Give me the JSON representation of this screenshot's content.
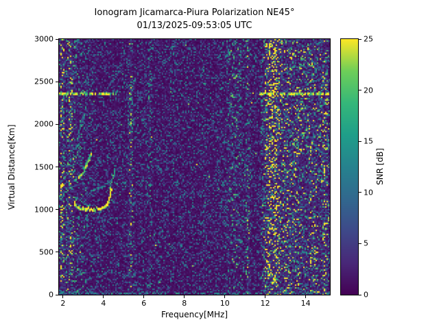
{
  "chart_data": {
    "type": "heatmap",
    "title": "Ionogram Jicamarca-Piura Polarization NE45°",
    "subtitle": "01/13/2025-09:53:05 UTC",
    "xlabel": "Frequency[MHz]",
    "ylabel": "Virtual Distance[Km]",
    "colorbar_label": "SNR [dB]",
    "xlim": [
      1.8,
      15.2
    ],
    "ylim": [
      0,
      3000
    ],
    "clim": [
      0,
      25
    ],
    "x_ticks": [
      2,
      4,
      6,
      8,
      10,
      12,
      14
    ],
    "y_ticks": [
      0,
      500,
      1000,
      1500,
      2000,
      2500,
      3000
    ],
    "colorbar_ticks": [
      0,
      5,
      10,
      15,
      20,
      25
    ],
    "colormap": "viridis",
    "colormap_anchors": [
      "#440154",
      "#482878",
      "#3e4989",
      "#31688e",
      "#26828e",
      "#1f9e89",
      "#35b779",
      "#6ece58",
      "#fde725"
    ],
    "background_color": "#440154",
    "noise_seed": 20250113,
    "vertical_noise_bands": [
      {
        "freq_mhz": 1.95,
        "halfwidth_mhz": 0.05,
        "gain": 3.2
      },
      {
        "freq_mhz": 2.35,
        "halfwidth_mhz": 0.12,
        "gain": 2.6
      },
      {
        "freq_mhz": 2.8,
        "halfwidth_mhz": 0.3,
        "gain": 1.5
      },
      {
        "freq_mhz": 5.35,
        "halfwidth_mhz": 0.07,
        "gain": 2.2
      },
      {
        "freq_mhz": 6.3,
        "halfwidth_mhz": 0.06,
        "gain": 1.5
      },
      {
        "freq_mhz": 7.5,
        "halfwidth_mhz": 0.05,
        "gain": 1.3
      },
      {
        "freq_mhz": 9.0,
        "halfwidth_mhz": 0.05,
        "gain": 1.4
      },
      {
        "freq_mhz": 10.5,
        "halfwidth_mhz": 0.3,
        "gain": 1.7
      },
      {
        "freq_mhz": 11.15,
        "halfwidth_mhz": 0.07,
        "gain": 2.0
      },
      {
        "freq_mhz": 12.33,
        "halfwidth_mhz": 0.18,
        "gain": 7.0
      },
      {
        "freq_mhz": 12.9,
        "halfwidth_mhz": 0.25,
        "gain": 2.0
      },
      {
        "freq_mhz": 13.6,
        "halfwidth_mhz": 0.3,
        "gain": 1.8
      },
      {
        "freq_mhz": 14.4,
        "halfwidth_mhz": 0.2,
        "gain": 1.9
      },
      {
        "freq_mhz": 14.95,
        "halfwidth_mhz": 0.12,
        "gain": 2.4
      }
    ],
    "horizontal_echo_lines": [
      {
        "km": 2350,
        "freq_ranges_mhz": [
          [
            1.85,
            4.75
          ],
          [
            11.75,
            15.18
          ]
        ],
        "snr_db": 23,
        "dash": 0.8
      },
      {
        "km": 2350,
        "freq_ranges_mhz": [
          [
            4.75,
            11.75
          ]
        ],
        "snr_db": 5,
        "dash": 0.08
      },
      {
        "km": 900,
        "freq_ranges_mhz": [
          [
            1.85,
            5.2
          ]
        ],
        "snr_db": 9,
        "dash": 0.3
      },
      {
        "km": 900,
        "freq_ranges_mhz": [
          [
            11.75,
            15.18
          ]
        ],
        "snr_db": 11,
        "dash": 0.45
      },
      {
        "km": 460,
        "freq_ranges_mhz": [
          [
            1.9,
            3.6
          ]
        ],
        "snr_db": 7,
        "dash": 0.25
      },
      {
        "km": 500,
        "freq_ranges_mhz": [
          [
            13.25,
            14.3
          ]
        ],
        "snr_db": 13,
        "dash": 0.55
      },
      {
        "km": 430,
        "freq_ranges_mhz": [
          [
            13.3,
            14.1
          ]
        ],
        "snr_db": 8,
        "dash": 0.3
      },
      {
        "km": 20,
        "freq_ranges_mhz": [
          [
            1.8,
            15.2
          ]
        ],
        "snr_db": 13,
        "dash": 0.6
      }
    ],
    "ionogram_traces": [
      {
        "name": "f-layer-main-trace",
        "snr_db": 24,
        "points_mhz_km": [
          [
            2.55,
            1075
          ],
          [
            2.7,
            1020
          ],
          [
            3.0,
            1000
          ],
          [
            3.4,
            995
          ],
          [
            3.8,
            1000
          ],
          [
            4.05,
            1015
          ],
          [
            4.2,
            1055
          ],
          [
            4.3,
            1125
          ],
          [
            4.38,
            1235
          ]
        ]
      },
      {
        "name": "f-layer-cusp-tail",
        "snr_db": 15,
        "points_mhz_km": [
          [
            4.36,
            1280
          ],
          [
            4.5,
            1395
          ],
          [
            4.58,
            1480
          ]
        ]
      },
      {
        "name": "second-hop-trace",
        "snr_db": 20,
        "points_mhz_km": [
          [
            2.6,
            1330
          ],
          [
            2.8,
            1365
          ],
          [
            3.0,
            1425
          ],
          [
            3.15,
            1505
          ],
          [
            3.3,
            1595
          ],
          [
            3.42,
            1655
          ]
        ]
      },
      {
        "name": "oblique-echo-trace",
        "snr_db": 12,
        "points_mhz_km": [
          [
            3.7,
            1245
          ],
          [
            3.95,
            1265
          ],
          [
            4.2,
            1305
          ],
          [
            4.45,
            1365
          ]
        ]
      },
      {
        "name": "upper-multiple-echo",
        "snr_db": 9,
        "points_mhz_km": [
          [
            2.75,
            1900
          ],
          [
            2.9,
            1985
          ],
          [
            3.05,
            2085
          ]
        ]
      },
      {
        "name": "top-edge-echo",
        "snr_db": 8,
        "points_mhz_km": [
          [
            2.6,
            2895
          ],
          [
            2.75,
            2960
          ],
          [
            2.85,
            2995
          ]
        ]
      }
    ]
  }
}
